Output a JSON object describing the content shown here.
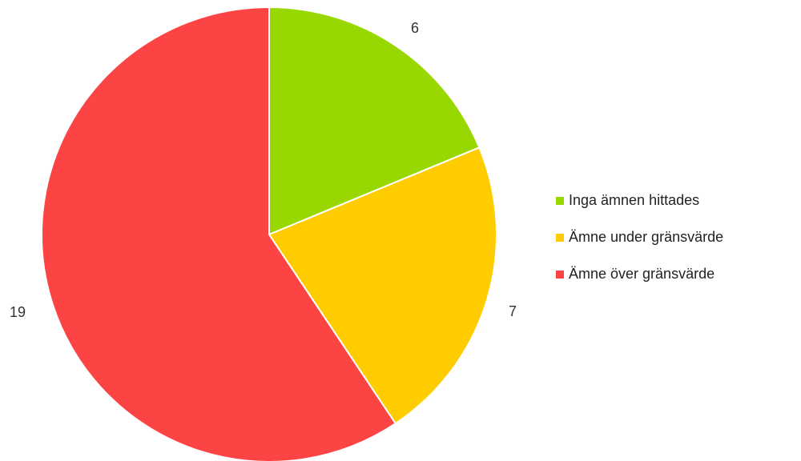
{
  "chart_data": {
    "type": "pie",
    "categories": [
      "Inga ämnen hittades",
      "Ämne under gränsvärde",
      "Ämne över gränsvärde"
    ],
    "values": [
      6,
      7,
      19
    ],
    "data_labels": [
      "6",
      "7",
      "19"
    ],
    "colors": [
      "#99d700",
      "#ffcc00",
      "#fd4444"
    ],
    "start_angle_deg": 0,
    "direction": "clockwise",
    "legend_position": "right"
  }
}
